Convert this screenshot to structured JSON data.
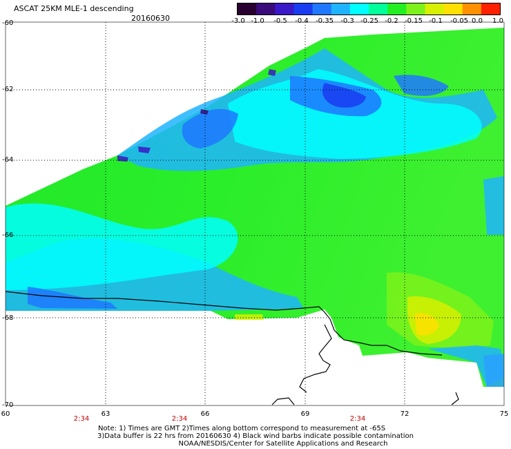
{
  "header": {
    "title": "ASCAT 25KM MLE-1 descending",
    "date": "20160630"
  },
  "colorbar": {
    "labels": [
      "-3.0",
      "-1.0",
      "-0.5",
      "-0.4",
      "-0.35",
      "-0.3",
      "-0.25",
      "-0.2",
      "-0.15",
      "-0.1",
      "-0.05",
      "0.0",
      "1.0"
    ],
    "colors": [
      "#2a0030",
      "#3a0b7a",
      "#3a19c8",
      "#1a3cf0",
      "#1f78ff",
      "#1fb4ff",
      "#00ffff",
      "#00ff9a",
      "#22ee22",
      "#7cf21a",
      "#d6f000",
      "#ffe000",
      "#ff9000",
      "#ff2000"
    ]
  },
  "axes": {
    "lat_labels": [
      "-60",
      "-62",
      "-64",
      "-66",
      "-68",
      "-70"
    ],
    "lon_labels": [
      "60",
      "63",
      "66",
      "69",
      "72",
      "75"
    ],
    "time_labels": [
      "2:34",
      "2:34",
      "2:34"
    ]
  },
  "notes": {
    "line1": "Note: 1) Times are GMT 2)Times along bottom correspond to measurement at -65S",
    "line2": "3)Data buffer is 22 hrs from 20160630 4) Black wind barbs indicate possible contamination",
    "line3": "NOAA/NESDIS/Center for Satellite Applications and Research"
  }
}
